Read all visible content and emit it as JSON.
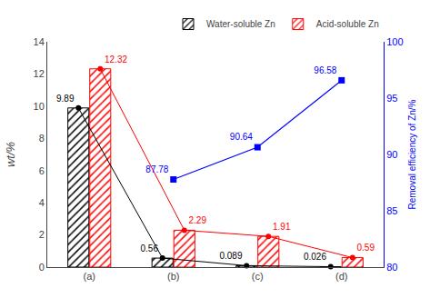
{
  "chart_data": {
    "type": "bar",
    "categories": [
      "(a)",
      "(b)",
      "(c)",
      "(d)"
    ],
    "ylabel": "wt/%",
    "y2label": "Removal efficiency of Zn/%",
    "ylim": [
      0,
      14
    ],
    "yticks": [
      0,
      2,
      4,
      6,
      8,
      10,
      12,
      14
    ],
    "y2lim": [
      80,
      100
    ],
    "y2ticks": [
      80,
      85,
      90,
      95,
      100
    ],
    "grid": false,
    "legend": "upper right",
    "data_labels": true,
    "series": [
      {
        "name": "Water-soluble Zn",
        "color": "black",
        "marker": "circle",
        "values": [
          9.89,
          0.56,
          0.089,
          0.026
        ]
      },
      {
        "name": "Acid-soluble Zn",
        "color": "red",
        "marker": "circle",
        "values": [
          12.32,
          2.29,
          1.91,
          0.59
        ]
      },
      {
        "type": "line",
        "axis": "y2",
        "color": "blue",
        "marker": "square",
        "values": [
          null,
          87.78,
          90.64,
          96.58
        ]
      }
    ]
  }
}
